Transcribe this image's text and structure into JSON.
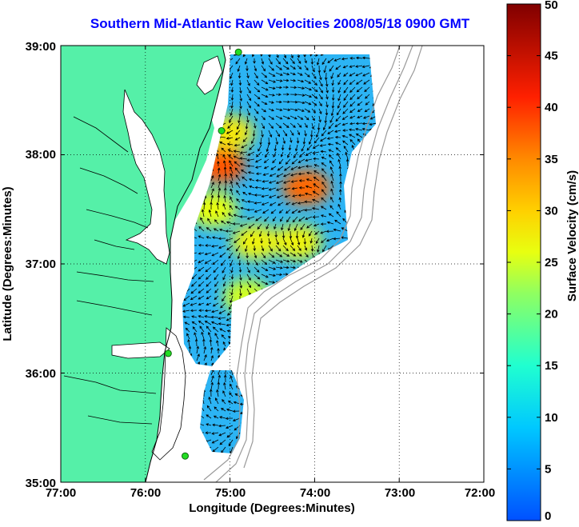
{
  "chart_data": {
    "type": "heatmap",
    "title": "Southern Mid-Atlantic Raw Velocities 2008/05/18 0900 GMT",
    "xlabel": "Longitude (Degrees:Minutes)",
    "ylabel": "Latitude (Degrees:Minutes)",
    "x_ticks": [
      "77:00",
      "76:00",
      "75:00",
      "74:00",
      "73:00",
      "72:00"
    ],
    "y_ticks": [
      "39:00",
      "38:00",
      "37:00",
      "36:00",
      "35:00"
    ],
    "xlim": [
      -77,
      -72
    ],
    "ylim": [
      35,
      39
    ],
    "grid": true,
    "colorbar": {
      "label": "Surface Velocity (cm/s)",
      "range": [
        0,
        50
      ],
      "ticks": [
        "50",
        "45",
        "40",
        "35",
        "30",
        "25",
        "20",
        "15",
        "10",
        "5",
        "0"
      ]
    },
    "land_color": "#55f0a8",
    "hotspots": [
      {
        "lon": -75.1,
        "lat": 37.9,
        "speed": 38
      },
      {
        "lon": -74.1,
        "lat": 37.7,
        "speed": 37
      },
      {
        "lon": -75.0,
        "lat": 38.2,
        "speed": 28
      },
      {
        "lon": -74.7,
        "lat": 37.2,
        "speed": 27
      },
      {
        "lon": -74.8,
        "lat": 36.7,
        "speed": 25
      },
      {
        "lon": -74.2,
        "lat": 37.2,
        "speed": 27
      },
      {
        "lon": -75.2,
        "lat": 37.5,
        "speed": 26
      }
    ],
    "stations": [
      {
        "lon": -74.9,
        "lat": 38.94
      },
      {
        "lon": -75.1,
        "lat": 38.22
      },
      {
        "lon": -75.73,
        "lat": 36.18
      },
      {
        "lon": -75.53,
        "lat": 35.24
      }
    ]
  }
}
